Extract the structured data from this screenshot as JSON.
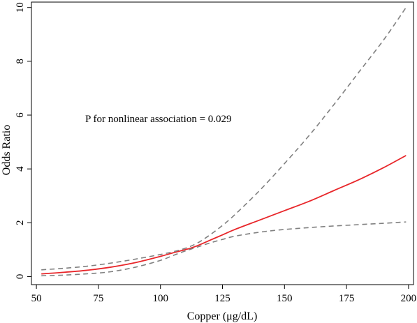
{
  "chart_data": {
    "type": "line",
    "xlabel": "Copper (μg/dL)",
    "ylabel": "Odds Ratio",
    "xlim": [
      48,
      202
    ],
    "ylim": [
      -0.3,
      10.2
    ],
    "x_ticks": [
      50,
      75,
      100,
      125,
      150,
      175,
      200
    ],
    "y_ticks": [
      0,
      2,
      4,
      6,
      8,
      10
    ],
    "grid": false,
    "legend": "none",
    "annotation": "P for nonlinear association = 0.029",
    "series": [
      {
        "role": "estimate",
        "color": "#e8262a",
        "style": "solid",
        "x": [
          52,
          60,
          70,
          80,
          90,
          100,
          105,
          110,
          112,
          115,
          120,
          125,
          130,
          140,
          150,
          160,
          170,
          180,
          190,
          199
        ],
        "y": [
          0.1,
          0.15,
          0.23,
          0.35,
          0.52,
          0.75,
          0.88,
          1.0,
          1.05,
          1.15,
          1.35,
          1.55,
          1.75,
          2.1,
          2.45,
          2.8,
          3.2,
          3.6,
          4.05,
          4.5
        ]
      },
      {
        "role": "upper",
        "color": "#808080",
        "style": "dashed",
        "x": [
          52,
          60,
          70,
          80,
          90,
          100,
          105,
          110,
          115,
          120,
          125,
          130,
          140,
          150,
          160,
          170,
          180,
          190,
          199
        ],
        "y": [
          0.25,
          0.3,
          0.38,
          0.5,
          0.65,
          0.82,
          0.92,
          1.05,
          1.25,
          1.55,
          1.9,
          2.3,
          3.2,
          4.2,
          5.25,
          6.4,
          7.6,
          8.8,
          10.0
        ]
      },
      {
        "role": "lower",
        "color": "#808080",
        "style": "dashed",
        "x": [
          52,
          60,
          70,
          80,
          90,
          100,
          105,
          110,
          115,
          120,
          125,
          130,
          140,
          150,
          160,
          170,
          180,
          190,
          199
        ],
        "y": [
          0.03,
          0.05,
          0.1,
          0.18,
          0.35,
          0.6,
          0.78,
          0.95,
          1.1,
          1.25,
          1.38,
          1.5,
          1.65,
          1.75,
          1.82,
          1.88,
          1.93,
          1.98,
          2.03
        ]
      }
    ]
  }
}
